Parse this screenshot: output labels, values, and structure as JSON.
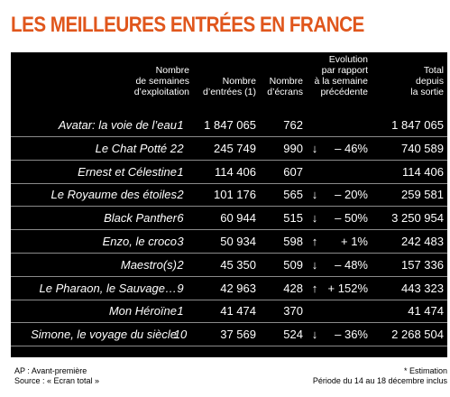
{
  "title": "LES MEILLEURES ENTRÉES EN FRANCE",
  "chart_data": {
    "type": "table",
    "columns": {
      "weeks": [
        "Nombre",
        "de semaines",
        "d’exploitation"
      ],
      "entries": [
        "Nombre",
        "d’entrées (1)"
      ],
      "screens": [
        "Nombre",
        "d’écrans"
      ],
      "evolution": [
        "Evolution",
        "par rapport",
        "à la semaine",
        "précédente"
      ],
      "total": [
        "Total",
        "depuis",
        "la sortie"
      ]
    },
    "rows": [
      {
        "film": "Avatar: la voie de l’eau",
        "weeks": "1",
        "entries": "1 847 065",
        "screens": "762",
        "arrow": "",
        "evolution": "",
        "total": "1 847 065"
      },
      {
        "film": "Le Chat Potté 2",
        "weeks": "2",
        "entries": "245 749",
        "screens": "990",
        "arrow": "↓",
        "evolution": "– 46%",
        "total": "740 589"
      },
      {
        "film": "Ernest et Célestine",
        "weeks": "1",
        "entries": "114 406",
        "screens": "607",
        "arrow": "",
        "evolution": "",
        "total": "114 406"
      },
      {
        "film": "Le Royaume des étoiles",
        "weeks": "2",
        "entries": "101 176",
        "screens": "565",
        "arrow": "↓",
        "evolution": "– 20%",
        "total": "259 581"
      },
      {
        "film": "Black Panther",
        "weeks": "6",
        "entries": "60 944",
        "screens": "515",
        "arrow": "↓",
        "evolution": "– 50%",
        "total": "3 250 954"
      },
      {
        "film": "Enzo, le croco",
        "weeks": "3",
        "entries": "50 934",
        "screens": "598",
        "arrow": "↑",
        "evolution": "+ 1%",
        "total": "242 483"
      },
      {
        "film": "Maestro(s)",
        "weeks": "2",
        "entries": "45 350",
        "screens": "509",
        "arrow": "↓",
        "evolution": "– 48%",
        "total": "157 336"
      },
      {
        "film": "Le Pharaon, le Sauvage…",
        "weeks": "9",
        "entries": "42 963",
        "screens": "428",
        "arrow": "↑",
        "evolution": "+ 152%",
        "total": "443 323"
      },
      {
        "film": "Mon Héroïne",
        "weeks": "1",
        "entries": "41 474",
        "screens": "370",
        "arrow": "",
        "evolution": "",
        "total": "41 474"
      },
      {
        "film": "Simone, le voyage du siècle",
        "weeks": "10",
        "entries": "37 569",
        "screens": "524",
        "arrow": "↓",
        "evolution": "– 36%",
        "total": "2 268 504"
      }
    ]
  },
  "notes": {
    "ap": "AP : Avant-première",
    "source": "Source : « Ecran total »",
    "estimation": "* Estimation",
    "period": "Période du 14 au 18 décembre inclus"
  }
}
